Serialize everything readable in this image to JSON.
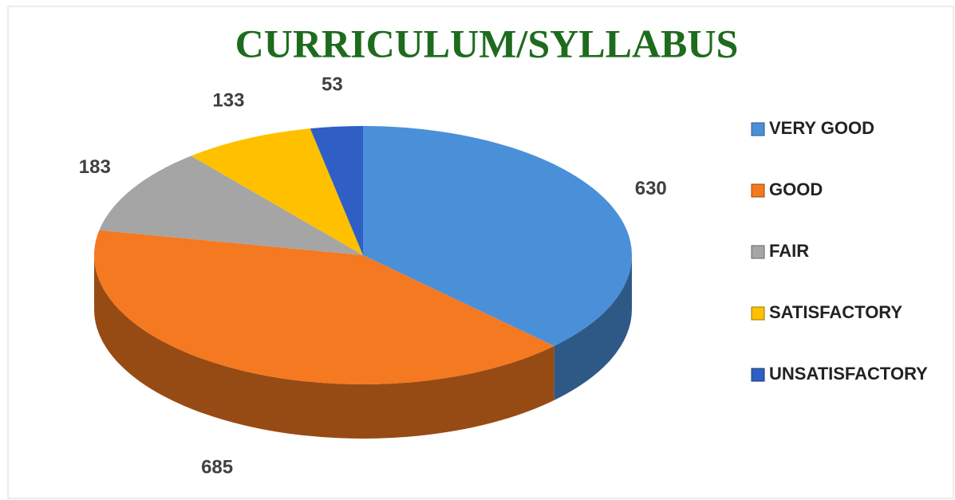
{
  "chart_data": {
    "type": "pie",
    "title": "CURRICULUM/SYLLABUS",
    "categories": [
      "VERY GOOD",
      "GOOD",
      "FAIR",
      "SATISFACTORY",
      "UNSATISFACTORY"
    ],
    "values": [
      630,
      685,
      183,
      133,
      53
    ],
    "colors": [
      "#4a90d9",
      "#f47920",
      "#a5a5a5",
      "#ffc000",
      "#2f5fc4"
    ],
    "legend": "right"
  }
}
